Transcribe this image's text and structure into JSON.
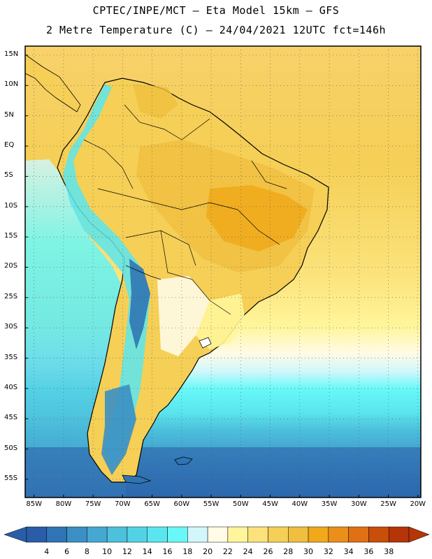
{
  "header": {
    "line1": "CPTEC/INPE/MCT –  Eta Model 15km – GFS",
    "line2": "2 Metre Temperature (C) – 24/04/2021 12UTC fct=146h"
  },
  "map": {
    "lat_labels": [
      "15N",
      "10N",
      "5N",
      "EQ",
      "5S",
      "10S",
      "15S",
      "20S",
      "25S",
      "30S",
      "35S",
      "40S",
      "45S",
      "50S",
      "55S"
    ],
    "lon_labels": [
      "85W",
      "80W",
      "75W",
      "70W",
      "65W",
      "60W",
      "55W",
      "50W",
      "45W",
      "40W",
      "35W",
      "30W",
      "25W",
      "20W"
    ],
    "lat_values": [
      15,
      10,
      5,
      0,
      -5,
      -10,
      -15,
      -20,
      -25,
      -30,
      -35,
      -40,
      -45,
      -50,
      -55
    ],
    "lon_values": [
      -85,
      -80,
      -75,
      -70,
      -65,
      -60,
      -55,
      -50,
      -45,
      -40,
      -35,
      -30,
      -25,
      -20
    ]
  },
  "colorbar": {
    "labels": [
      "4",
      "6",
      "8",
      "10",
      "12",
      "14",
      "16",
      "18",
      "20",
      "22",
      "24",
      "26",
      "28",
      "30",
      "32",
      "34",
      "36",
      "38"
    ],
    "colors": [
      "#2a5da8",
      "#2f75b5",
      "#3b8fc4",
      "#45a8d2",
      "#4dc0dc",
      "#52d3e5",
      "#5be6ef",
      "#68f8f8",
      "#d2f7fb",
      "#fffbe5",
      "#fff59a",
      "#fbe27a",
      "#f5cf56",
      "#f0bf3f",
      "#f0a91a",
      "#ea8f1a",
      "#e07014",
      "#c94e0a",
      "#b53508"
    ],
    "low_color": "#2a5da8",
    "high_color": "#b53508"
  }
}
